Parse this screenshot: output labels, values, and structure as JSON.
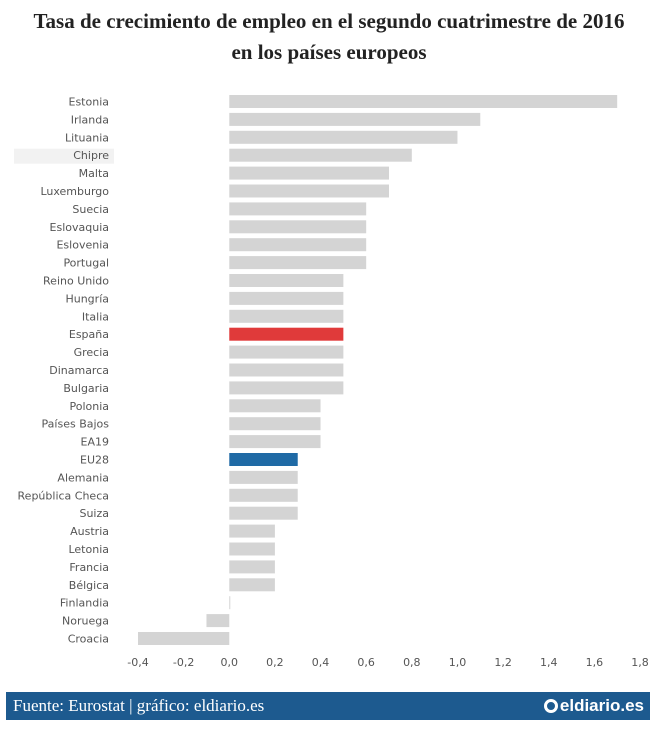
{
  "title_lines": [
    "Tasa de crecimiento de empleo en el segundo cuatrimestre de 2016",
    "en los países europeos"
  ],
  "footer": {
    "source": "Fuente: Eurostat | gráfico: eldiario.es",
    "brand": "eldiario.es"
  },
  "colors": {
    "default_bar": "#d4d4d4",
    "highlight_es": "#e03a3a",
    "highlight_eu": "#1f6aa5",
    "footer_bg": "#1d5a8f"
  },
  "chart_data": {
    "type": "bar",
    "orientation": "horizontal",
    "title": "Tasa de crecimiento de empleo en el segundo cuatrimestre de 2016 en los países europeos",
    "xlabel": "",
    "ylabel": "",
    "xlim": [
      -0.4,
      1.8
    ],
    "ticks": [
      -0.4,
      -0.2,
      0.0,
      0.2,
      0.4,
      0.6,
      0.8,
      1.0,
      1.2,
      1.4,
      1.6,
      1.8
    ],
    "tick_labels": [
      "-0,4",
      "-0,2",
      "0,0",
      "0,2",
      "0,4",
      "0,6",
      "0,8",
      "1,0",
      "1,2",
      "1,4",
      "1,6",
      "1,8"
    ],
    "grid": false,
    "categories": [
      "Estonia",
      "Irlanda",
      "Lituania",
      "Chipre",
      "Malta",
      "Luxemburgo",
      "Suecia",
      "Eslovaquia",
      "Eslovenia",
      "Portugal",
      "Reino Unido",
      "Hungría",
      "Italia",
      "España",
      "Grecia",
      "Dinamarca",
      "Bulgaria",
      "Polonia",
      "Países Bajos",
      "EA19",
      "EU28",
      "Alemania",
      "República Checa",
      "Suiza",
      "Austria",
      "Letonia",
      "Francia",
      "Bélgica",
      "Finlandia",
      "Noruega",
      "Croacia"
    ],
    "values": [
      1.7,
      1.1,
      1.0,
      0.8,
      0.7,
      0.7,
      0.6,
      0.6,
      0.6,
      0.6,
      0.5,
      0.5,
      0.5,
      0.5,
      0.5,
      0.5,
      0.5,
      0.4,
      0.4,
      0.4,
      0.3,
      0.3,
      0.3,
      0.3,
      0.2,
      0.2,
      0.2,
      0.2,
      0.0,
      -0.1,
      -0.4
    ],
    "highlights": {
      "España": "highlight_es",
      "EU28": "highlight_eu"
    },
    "hovered_category": "Chipre"
  }
}
